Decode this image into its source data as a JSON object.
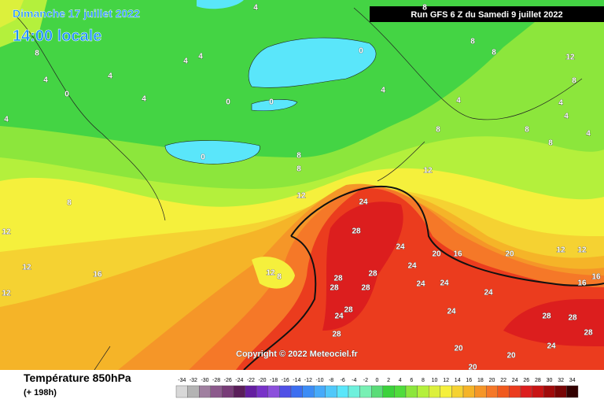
{
  "header": {
    "date": "Dimanche 17 juillet 2022",
    "time": "14:00 locale",
    "run": "Run GFS 6 Z du Samedi 9 juillet 2022"
  },
  "copyright": "Copyright © 2022 Meteociel.fr",
  "footer": {
    "title": "Température 850hPa",
    "lead": "(+ 198h)"
  },
  "contour_labels": [
    8,
    4,
    0,
    4,
    4,
    4,
    4,
    4,
    0,
    0,
    0,
    4,
    0,
    4,
    8,
    8,
    12,
    8,
    12,
    12,
    12,
    16,
    12,
    8,
    24,
    28,
    24,
    28,
    28,
    28,
    28,
    24,
    20,
    16,
    20,
    12,
    12,
    24,
    24,
    24,
    24,
    28,
    24,
    28,
    20,
    20,
    20,
    24,
    28,
    28,
    28,
    16,
    16,
    12,
    8,
    4,
    4,
    4,
    8,
    8,
    8,
    12,
    8,
    8,
    8,
    4
  ],
  "colorbar": {
    "values": [
      -34,
      -32,
      -30,
      -28,
      -26,
      -24,
      -22,
      -20,
      -18,
      -16,
      -14,
      -12,
      -10,
      -8,
      -6,
      -4,
      -2,
      0,
      2,
      4,
      6,
      8,
      10,
      12,
      14,
      16,
      18,
      20,
      22,
      24,
      26,
      28,
      30,
      32,
      34
    ],
    "colors": [
      "#d8d8d8",
      "#b4b4b4",
      "#a080a0",
      "#8c5a8c",
      "#783c78",
      "#5a1e5a",
      "#641ea0",
      "#7832c8",
      "#8c50dc",
      "#5050e6",
      "#3c6ef0",
      "#3c8cf5",
      "#46aafa",
      "#50c8fa",
      "#5ae6fa",
      "#6ef0dc",
      "#78f0b4",
      "#5adc78",
      "#3cd23c",
      "#50dc3c",
      "#8ce63c",
      "#b4f03c",
      "#dcf03c",
      "#f5f03c",
      "#f5d232",
      "#f5b428",
      "#f59628",
      "#f57828",
      "#f05a1e",
      "#eb3c1e",
      "#dc1e1e",
      "#c81414",
      "#a00a0a",
      "#780505",
      "#320000"
    ]
  }
}
